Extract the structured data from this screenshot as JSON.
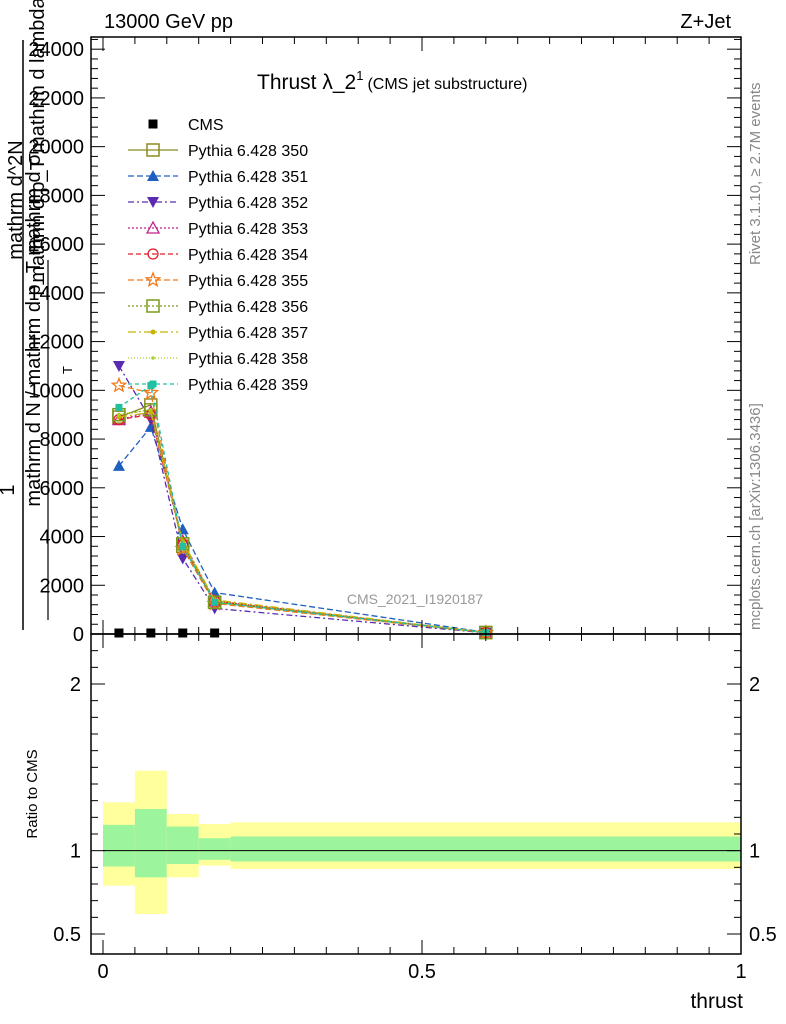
{
  "header": {
    "left": "13000 GeV pp",
    "right": "Z+Jet"
  },
  "title": {
    "main": "Thrust λ_2",
    "superscript": "1",
    "sub": "(CMS jet substructure)"
  },
  "side": {
    "rivet": "Rivet 3.1.10, ≥ 2.7M events",
    "mcplots": "mcplots.cern.ch [arXiv:1306.3436]"
  },
  "watermark": "CMS_2021_I1920187",
  "chart_data": [
    {
      "type": "line",
      "panel": "main",
      "ylabel_lines": [
        "1",
        "mathrm d N / mathrm d p_T mathrm d σ",
        "mathrm d^2N",
        "mathrm d p_T mathrm d lambda"
      ],
      "ylabel_subscript": "T",
      "xlabel": "",
      "xlim": [
        0,
        1
      ],
      "ylim": [
        0,
        24500
      ],
      "yticks": [
        0,
        2000,
        4000,
        6000,
        8000,
        10000,
        12000,
        14000,
        16000,
        18000,
        20000,
        22000,
        24000
      ],
      "ytick_labels": [
        "0",
        "2000",
        "4000",
        "6000",
        "8000",
        "10000",
        "12000",
        "14000",
        "16000",
        "18000",
        "20000",
        "22000",
        "24000"
      ],
      "x": [
        0.025,
        0.075,
        0.125,
        0.175,
        0.6
      ],
      "series": [
        {
          "name": "CMS",
          "color": "#000000",
          "marker": "square-filled",
          "dash": "none",
          "values": [
            0,
            0,
            0,
            0,
            0
          ]
        },
        {
          "name": "Pythia 6.428 350",
          "color": "#8b8b1e",
          "marker": "square-open",
          "dash": "solid",
          "values": [
            8900,
            9400,
            3600,
            1300,
            60
          ]
        },
        {
          "name": "Pythia 6.428 351",
          "color": "#1f5fbf",
          "marker": "triangle-up-filled",
          "dash": "6,3",
          "values": [
            6900,
            8500,
            4300,
            1700,
            70
          ]
        },
        {
          "name": "Pythia 6.428 352",
          "color": "#5a2bb0",
          "marker": "triangle-down-filled",
          "dash": "6,3,2,3",
          "values": [
            11000,
            8800,
            3100,
            1050,
            50
          ]
        },
        {
          "name": "Pythia 6.428 353",
          "color": "#c0208a",
          "marker": "triangle-up-open",
          "dash": "2,2",
          "values": [
            8800,
            9100,
            3800,
            1350,
            60
          ]
        },
        {
          "name": "Pythia 6.428 354",
          "color": "#dd1f2a",
          "marker": "circle-open",
          "dash": "5,3",
          "values": [
            8800,
            9000,
            3700,
            1350,
            60
          ]
        },
        {
          "name": "Pythia 6.428 355",
          "color": "#f07a1a",
          "marker": "star-open",
          "dash": "6,3",
          "values": [
            10200,
            9900,
            3500,
            1250,
            55
          ]
        },
        {
          "name": "Pythia 6.428 356",
          "color": "#7a9a1a",
          "marker": "square-open",
          "dash": "2,2",
          "values": [
            9000,
            9200,
            3700,
            1300,
            60
          ]
        },
        {
          "name": "Pythia 6.428 357",
          "color": "#c8b400",
          "marker": "dot",
          "dash": "8,3,2,3",
          "values": [
            8900,
            9100,
            3800,
            1400,
            60
          ]
        },
        {
          "name": "Pythia 6.428 358",
          "color": "#a8d020",
          "marker": "dot-small",
          "dash": "1,2",
          "values": [
            9000,
            9200,
            3700,
            1350,
            60
          ]
        },
        {
          "name": "Pythia 6.428 359",
          "color": "#20c0a0",
          "marker": "square-filled-small",
          "dash": "4,3",
          "values": [
            9300,
            10200,
            3600,
            1300,
            60
          ]
        }
      ]
    },
    {
      "type": "area",
      "panel": "ratio",
      "ylabel": "Ratio to CMS",
      "xlabel": "thrust",
      "xlim": [
        0,
        1
      ],
      "ylim": [
        0.38,
        2.3
      ],
      "yticks": [
        0.5,
        1,
        2
      ],
      "ytick_labels": [
        "0.5",
        "1",
        "2"
      ],
      "xticks": [
        0,
        0.5,
        1
      ],
      "xtick_labels": [
        "0",
        "0.5",
        "1"
      ],
      "bins": [
        [
          0,
          0.05
        ],
        [
          0.05,
          0.1
        ],
        [
          0.1,
          0.15
        ],
        [
          0.15,
          0.2
        ],
        [
          0.2,
          1
        ]
      ],
      "band_inner": [
        [
          0.905,
          1.155
        ],
        [
          0.84,
          1.25
        ],
        [
          0.92,
          1.145
        ],
        [
          0.945,
          1.075
        ],
        [
          0.935,
          1.085
        ]
      ],
      "band_outer": [
        [
          0.79,
          1.29
        ],
        [
          0.62,
          1.48
        ],
        [
          0.84,
          1.22
        ],
        [
          0.91,
          1.16
        ],
        [
          0.89,
          1.17
        ]
      ],
      "band_colors": {
        "inner": "#9cf59c",
        "outer": "#ffff9c"
      },
      "reference_line": 1
    }
  ]
}
